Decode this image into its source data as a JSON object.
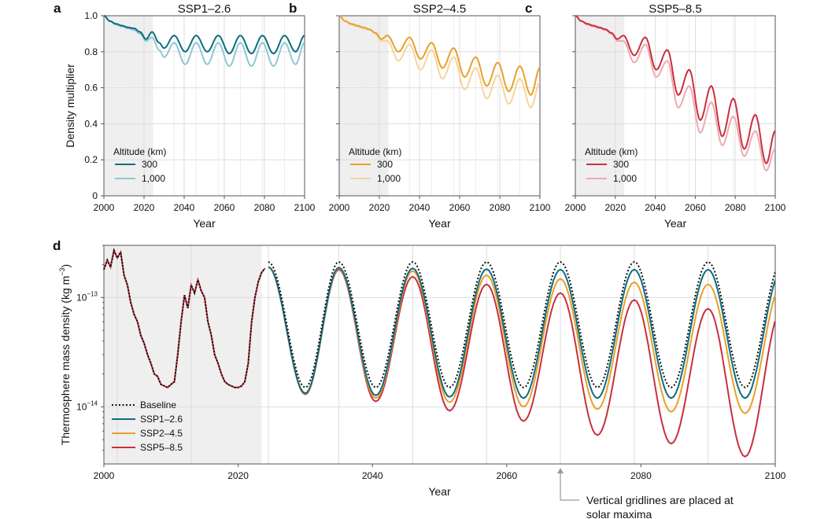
{
  "chart_data": [
    {
      "panel": "a",
      "type": "line",
      "title": "SSP1–2.6",
      "xlabel": "Year",
      "ylabel": "Density multiplier",
      "xlim": [
        2000,
        2100
      ],
      "ylim": [
        0,
        1.0
      ],
      "xticks": [
        "2000",
        "2020",
        "2040",
        "2060",
        "2080",
        "2100"
      ],
      "yticks": [
        "0",
        "0.2",
        "0.4",
        "0.6",
        "0.8",
        "1.0"
      ],
      "shaded_region": [
        2000,
        2024.5
      ],
      "legend_title": "Altitude (km)",
      "legend_position": "lower-left",
      "series": [
        {
          "name": "300",
          "color": "#0e6d80",
          "x": [
            2000,
            2003,
            2006,
            2009,
            2012,
            2015,
            2018,
            2021,
            2024,
            2027.5,
            2030,
            2035,
            2040.5,
            2046,
            2051.5,
            2057,
            2062.5,
            2068,
            2073.5,
            2079,
            2084.5,
            2090,
            2095.5,
            2100
          ],
          "y": [
            1.0,
            0.97,
            0.955,
            0.945,
            0.935,
            0.93,
            0.91,
            0.87,
            0.91,
            0.85,
            0.82,
            0.89,
            0.8,
            0.89,
            0.8,
            0.89,
            0.79,
            0.89,
            0.79,
            0.89,
            0.79,
            0.89,
            0.8,
            0.89
          ]
        },
        {
          "name": "1,000",
          "color": "#8ec9d1",
          "x": [
            2000,
            2003,
            2006,
            2009,
            2012,
            2015,
            2018,
            2021,
            2024,
            2027.5,
            2030,
            2035,
            2040.5,
            2046,
            2051.5,
            2057,
            2062.5,
            2068,
            2073.5,
            2079,
            2084.5,
            2090,
            2095.5,
            2100
          ],
          "y": [
            1.0,
            0.97,
            0.95,
            0.94,
            0.93,
            0.92,
            0.9,
            0.86,
            0.88,
            0.81,
            0.77,
            0.85,
            0.73,
            0.85,
            0.73,
            0.85,
            0.72,
            0.85,
            0.72,
            0.85,
            0.72,
            0.85,
            0.73,
            0.85
          ]
        }
      ]
    },
    {
      "panel": "b",
      "type": "line",
      "title": "SSP2–4.5",
      "xlabel": "Year",
      "ylabel": "",
      "xlim": [
        2000,
        2100
      ],
      "ylim": [
        0,
        1.0
      ],
      "xticks": [
        "2000",
        "2020",
        "2040",
        "2060",
        "2080",
        "2100"
      ],
      "shaded_region": [
        2000,
        2024.5
      ],
      "legend_title": "Altitude (km)",
      "legend_position": "lower-left",
      "series": [
        {
          "name": "300",
          "color": "#e8a02a",
          "x": [
            2000,
            2003,
            2006,
            2009,
            2012,
            2015,
            2018,
            2021,
            2024,
            2029.5,
            2035,
            2040.5,
            2046,
            2051.5,
            2057,
            2062.5,
            2068,
            2073.5,
            2079,
            2084.5,
            2090,
            2095.5,
            2100
          ],
          "y": [
            1.0,
            0.97,
            0.955,
            0.945,
            0.935,
            0.925,
            0.905,
            0.87,
            0.89,
            0.8,
            0.88,
            0.76,
            0.85,
            0.71,
            0.82,
            0.66,
            0.77,
            0.61,
            0.74,
            0.58,
            0.72,
            0.56,
            0.71
          ]
        },
        {
          "name": "1,000",
          "color": "#f5d59a",
          "x": [
            2000,
            2003,
            2006,
            2009,
            2012,
            2015,
            2018,
            2021,
            2024,
            2029.5,
            2035,
            2040.5,
            2046,
            2051.5,
            2057,
            2062.5,
            2068,
            2073.5,
            2079,
            2084.5,
            2090,
            2095.5,
            2100
          ],
          "y": [
            1.0,
            0.97,
            0.95,
            0.94,
            0.93,
            0.92,
            0.9,
            0.86,
            0.86,
            0.75,
            0.84,
            0.7,
            0.81,
            0.65,
            0.77,
            0.59,
            0.71,
            0.54,
            0.67,
            0.51,
            0.65,
            0.49,
            0.63
          ]
        }
      ]
    },
    {
      "panel": "c",
      "type": "line",
      "title": "SSP5–8.5",
      "xlabel": "Year",
      "ylabel": "",
      "xlim": [
        2000,
        2100
      ],
      "ylim": [
        0,
        1.0
      ],
      "xticks": [
        "2000",
        "2020",
        "2040",
        "2060",
        "2080",
        "2100"
      ],
      "shaded_region": [
        2000,
        2024.5
      ],
      "legend_title": "Altitude (km)",
      "legend_position": "lower-left",
      "series": [
        {
          "name": "300",
          "color": "#c8303f",
          "x": [
            2000,
            2003,
            2006,
            2009,
            2012,
            2015,
            2018,
            2021,
            2024,
            2029.5,
            2035,
            2040.5,
            2046,
            2051.5,
            2057,
            2062.5,
            2068,
            2073.5,
            2079,
            2084.5,
            2090,
            2095.5,
            2100
          ],
          "y": [
            1.0,
            0.97,
            0.955,
            0.945,
            0.935,
            0.925,
            0.905,
            0.87,
            0.89,
            0.78,
            0.88,
            0.7,
            0.81,
            0.56,
            0.7,
            0.42,
            0.61,
            0.33,
            0.54,
            0.26,
            0.45,
            0.18,
            0.36
          ]
        },
        {
          "name": "1,000",
          "color": "#eeaab2",
          "x": [
            2000,
            2003,
            2006,
            2009,
            2012,
            2015,
            2018,
            2021,
            2024,
            2029.5,
            2035,
            2040.5,
            2046,
            2051.5,
            2057,
            2062.5,
            2068,
            2073.5,
            2079,
            2084.5,
            2090,
            2095.5,
            2100
          ],
          "y": [
            1.0,
            0.97,
            0.95,
            0.94,
            0.93,
            0.92,
            0.9,
            0.86,
            0.86,
            0.74,
            0.84,
            0.66,
            0.75,
            0.49,
            0.61,
            0.35,
            0.52,
            0.28,
            0.44,
            0.22,
            0.36,
            0.14,
            0.26
          ]
        }
      ]
    },
    {
      "panel": "d",
      "type": "line",
      "title": "",
      "xlabel": "Year",
      "ylabel": "Thermosphere mass density (kg m",
      "ylabel_superscript": "−3",
      "ylabel_close": ")",
      "yscale": "log",
      "xlim": [
        2000,
        2100
      ],
      "ylim": [
        3e-15,
        3e-13
      ],
      "xticks": [
        "2000",
        "2020",
        "2040",
        "2060",
        "2080",
        "2100"
      ],
      "yticks": [
        {
          "base": "10",
          "exp": "−13",
          "value": 1e-13
        },
        {
          "base": "10",
          "exp": "−14",
          "value": 1e-14
        }
      ],
      "shaded_region": [
        2000,
        2023.5
      ],
      "solar_maxima_gridlines": [
        2002,
        2013,
        2024.5,
        2035,
        2046,
        2057,
        2068,
        2079,
        2090
      ],
      "legend_position": "lower-left",
      "annotation": {
        "x": 2068,
        "lines": [
          "Vertical gridlines are placed at",
          "solar maxima"
        ]
      },
      "historical": {
        "x": [
          2000,
          2000.5,
          2001,
          2001.5,
          2002,
          2002.5,
          2003,
          2003.5,
          2004,
          2004.5,
          2005,
          2005.5,
          2006,
          2006.5,
          2007,
          2007.5,
          2008,
          2008.5,
          2009,
          2009.5,
          2010,
          2010.5,
          2011,
          2011.5,
          2012,
          2012.5,
          2013,
          2013.5,
          2014,
          2014.5,
          2015,
          2015.5,
          2016,
          2016.5,
          2017,
          2017.5,
          2018,
          2018.5,
          2019,
          2019.5,
          2020,
          2020.5,
          2021,
          2021.5,
          2022,
          2022.5,
          2023,
          2023.5,
          2024
        ],
        "y": [
          1.8e-13,
          2.2e-13,
          1.9e-13,
          2.7e-13,
          2.3e-13,
          2.6e-13,
          1.6e-13,
          1.3e-13,
          9e-14,
          7e-14,
          6e-14,
          4.5e-14,
          3.8e-14,
          3e-14,
          2.5e-14,
          2e-14,
          1.9e-14,
          1.6e-14,
          1.55e-14,
          1.5e-14,
          1.6e-14,
          1.7e-14,
          3e-14,
          6e-14,
          1.05e-13,
          8e-14,
          1.3e-13,
          1.1e-13,
          1.45e-13,
          1.15e-13,
          1e-13,
          6e-14,
          4.5e-14,
          3e-14,
          2.5e-14,
          2e-14,
          1.7e-14,
          1.6e-14,
          1.55e-14,
          1.5e-14,
          1.5e-14,
          1.55e-14,
          1.7e-14,
          2.5e-14,
          6e-14,
          1e-13,
          1.4e-13,
          1.7e-13,
          1.85e-13
        ]
      },
      "series": [
        {
          "name": "Baseline",
          "color": "#111111",
          "dash": "dotted",
          "max": [
            2.12e-13,
            2.12e-13,
            2.12e-13,
            2.12e-13,
            2.12e-13,
            2.12e-13,
            2.12e-13
          ],
          "min": [
            1.5e-14,
            1.5e-14,
            1.5e-14,
            1.5e-14,
            1.5e-14,
            1.5e-14,
            1.5e-14
          ]
        },
        {
          "name": "SSP1–2.6",
          "color": "#0e6d80",
          "dash": "solid",
          "max": [
            1.9e-13,
            1.88e-13,
            1.85e-13,
            1.82e-13,
            1.8e-13,
            1.8e-13,
            1.8e-13
          ],
          "min": [
            1.33e-14,
            1.27e-14,
            1.23e-14,
            1.2e-14,
            1.2e-14,
            1.2e-14,
            1.2e-14
          ]
        },
        {
          "name": "SSP2–4.5",
          "color": "#e8a02a",
          "dash": "solid",
          "max": [
            1.9e-13,
            1.85e-13,
            1.75e-13,
            1.6e-13,
            1.48e-13,
            1.38e-13,
            1.32e-13
          ],
          "min": [
            1.32e-14,
            1.2e-14,
            1.1e-14,
            1e-14,
            9.5e-15,
            9e-15,
            8.7e-15
          ]
        },
        {
          "name": "SSP5–8.5",
          "color": "#c8303f",
          "dash": "solid",
          "max": [
            1.9e-13,
            1.8e-13,
            1.55e-13,
            1.32e-13,
            1.1e-13,
            9.5e-14,
            7.9e-14
          ],
          "min": [
            1.3e-14,
            1.12e-14,
            9.2e-15,
            7.4e-15,
            5.5e-15,
            4.6e-15,
            3.5e-15
          ]
        }
      ],
      "cycle_maxima_years": [
        2024.5,
        2035,
        2046,
        2057,
        2068,
        2079,
        2090,
        2101
      ],
      "cycle_minima_years": [
        2030,
        2040.5,
        2051.5,
        2062.5,
        2073.5,
        2084.5,
        2095.5
      ]
    }
  ]
}
